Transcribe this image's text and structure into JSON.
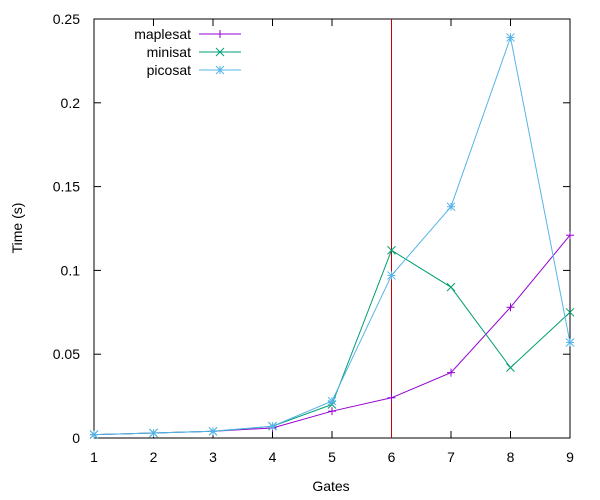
{
  "chart_data": {
    "type": "line",
    "xlabel": "Gates",
    "ylabel": "Time (s)",
    "xlim": [
      1,
      9
    ],
    "ylim": [
      0,
      0.25
    ],
    "x_ticks": [
      "1",
      "2",
      "3",
      "4",
      "5",
      "6",
      "7",
      "8",
      "9"
    ],
    "y_ticks": [
      "0",
      "0.05",
      "0.1",
      "0.15",
      "0.2",
      "0.25"
    ],
    "x": [
      1,
      2,
      3,
      4,
      5,
      6,
      7,
      8,
      9
    ],
    "series": [
      {
        "name": "maplesat",
        "color": "#9400d3",
        "marker": "plus",
        "values": [
          0.002,
          0.003,
          0.004,
          0.006,
          0.016,
          0.024,
          0.039,
          0.078,
          0.121
        ]
      },
      {
        "name": "minisat",
        "color": "#009e73",
        "marker": "cross",
        "values": [
          0.002,
          0.003,
          0.004,
          0.007,
          0.02,
          0.112,
          0.09,
          0.042,
          0.075
        ]
      },
      {
        "name": "picosat",
        "color": "#56b4e9",
        "marker": "star",
        "values": [
          0.002,
          0.003,
          0.004,
          0.007,
          0.022,
          0.097,
          0.138,
          0.239,
          0.057
        ]
      }
    ],
    "vertical_line": {
      "x": 6,
      "color": "#cc0000"
    },
    "legend_position": "top-left",
    "grid": false
  }
}
